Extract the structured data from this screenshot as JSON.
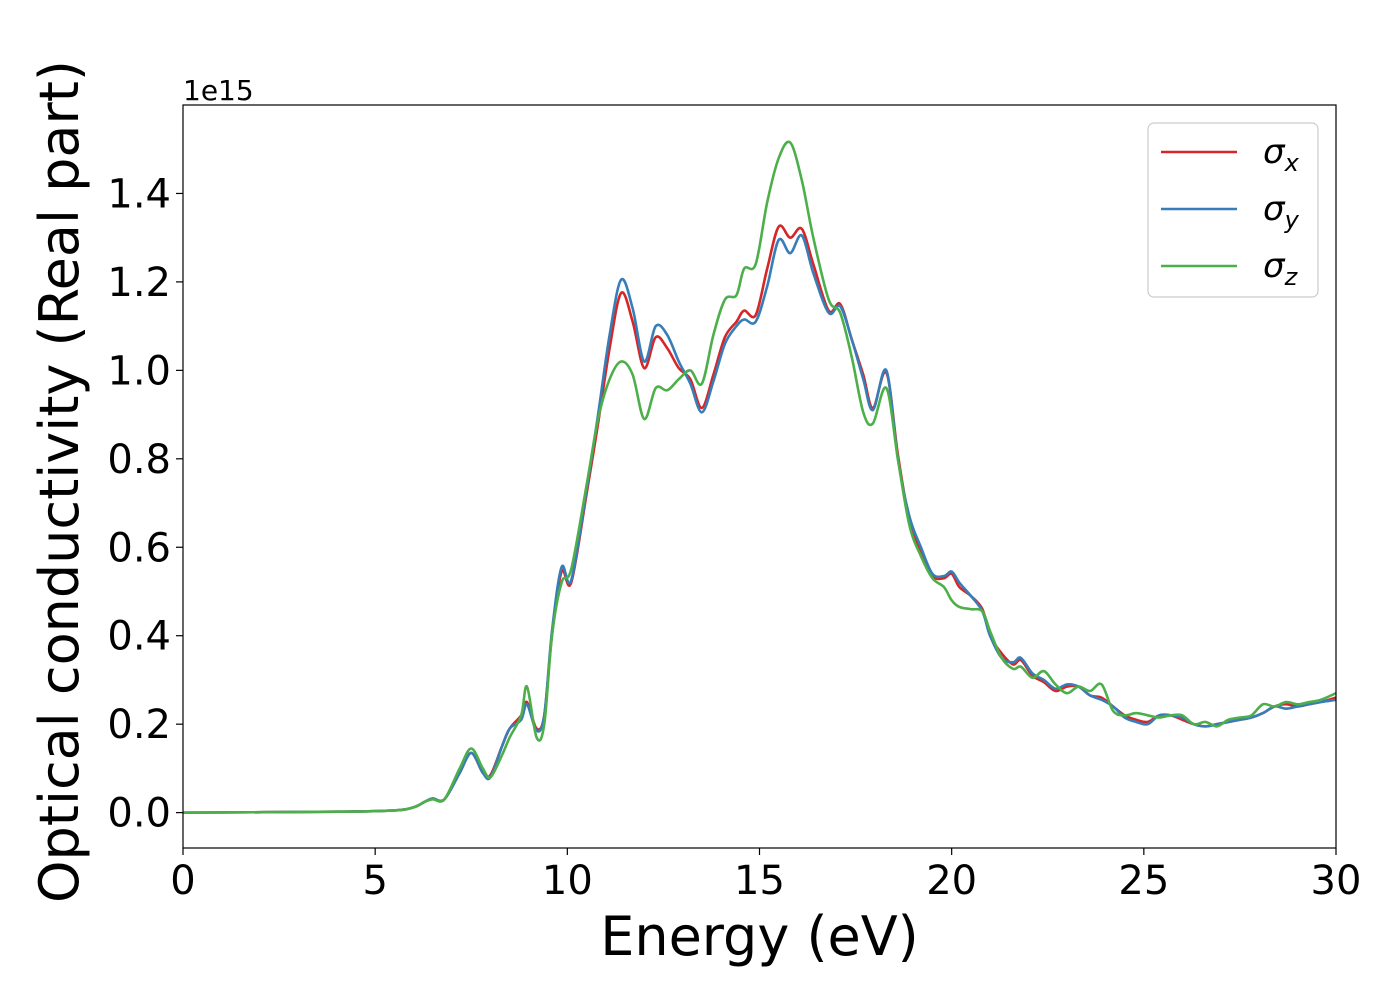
{
  "chart_data": {
    "type": "line",
    "xlabel": "Energy (eV)",
    "ylabel": "Optical conductivity (Real part)",
    "y_offset_label": "1e15",
    "xlim": [
      0,
      30
    ],
    "ylim": [
      -0.08,
      1.6
    ],
    "x_ticks": [
      0,
      5,
      10,
      15,
      20,
      25,
      30
    ],
    "x_tick_labels": [
      "0",
      "5",
      "10",
      "15",
      "20",
      "25",
      "30"
    ],
    "y_ticks": [
      0.0,
      0.2,
      0.4,
      0.6,
      0.8,
      1.0,
      1.2,
      1.4
    ],
    "y_tick_labels": [
      "0.0",
      "0.2",
      "0.4",
      "0.6",
      "0.8",
      "1.0",
      "1.2",
      "1.4"
    ],
    "grid": false,
    "legend_position": "top-right",
    "series": [
      {
        "name": "σ",
        "subscript": "x",
        "color": "#d62728",
        "x": [
          0,
          4,
          5.5,
          6.0,
          6.3,
          6.5,
          6.8,
          7.2,
          7.5,
          7.8,
          8.0,
          8.3,
          8.5,
          8.8,
          8.95,
          9.2,
          9.4,
          9.6,
          9.85,
          10.1,
          10.5,
          10.8,
          11.1,
          11.4,
          11.7,
          12.0,
          12.3,
          12.6,
          12.9,
          13.2,
          13.5,
          13.8,
          14.1,
          14.4,
          14.6,
          14.9,
          15.2,
          15.5,
          15.8,
          16.1,
          16.4,
          16.8,
          17.1,
          17.4,
          17.7,
          17.95,
          18.3,
          18.6,
          18.9,
          19.2,
          19.5,
          19.8,
          20.0,
          20.2,
          20.5,
          20.8,
          21.0,
          21.3,
          21.6,
          21.8,
          22.1,
          22.4,
          22.7,
          23.0,
          23.3,
          23.6,
          23.9,
          24.2,
          24.5,
          24.8,
          25.1,
          25.4,
          25.7,
          26.0,
          26.3,
          26.6,
          26.9,
          27.2,
          27.5,
          27.8,
          28.1,
          28.4,
          28.7,
          29.0,
          29.3,
          29.6,
          30.0
        ],
        "values": [
          0,
          0.002,
          0.005,
          0.012,
          0.025,
          0.032,
          0.03,
          0.09,
          0.135,
          0.09,
          0.085,
          0.15,
          0.19,
          0.22,
          0.25,
          0.19,
          0.22,
          0.4,
          0.545,
          0.52,
          0.72,
          0.88,
          1.05,
          1.175,
          1.11,
          1.005,
          1.075,
          1.05,
          1.005,
          0.98,
          0.915,
          0.99,
          1.075,
          1.11,
          1.135,
          1.125,
          1.23,
          1.325,
          1.3,
          1.32,
          1.24,
          1.135,
          1.15,
          1.07,
          0.99,
          0.915,
          0.995,
          0.81,
          0.66,
          0.59,
          0.535,
          0.53,
          0.54,
          0.51,
          0.49,
          0.46,
          0.4,
          0.36,
          0.335,
          0.345,
          0.31,
          0.295,
          0.275,
          0.285,
          0.285,
          0.265,
          0.26,
          0.24,
          0.22,
          0.21,
          0.205,
          0.22,
          0.22,
          0.21,
          0.2,
          0.195,
          0.2,
          0.205,
          0.21,
          0.215,
          0.225,
          0.24,
          0.245,
          0.24,
          0.245,
          0.25,
          0.26
        ]
      },
      {
        "name": "σ",
        "subscript": "y",
        "color": "#377eb8",
        "x": [
          0,
          4,
          5.5,
          6.0,
          6.3,
          6.5,
          6.8,
          7.2,
          7.5,
          7.8,
          8.0,
          8.3,
          8.5,
          8.8,
          8.95,
          9.2,
          9.4,
          9.6,
          9.85,
          10.1,
          10.5,
          10.8,
          11.1,
          11.4,
          11.7,
          12.0,
          12.3,
          12.6,
          12.9,
          13.2,
          13.5,
          13.8,
          14.1,
          14.4,
          14.6,
          14.9,
          15.2,
          15.5,
          15.8,
          16.1,
          16.4,
          16.8,
          17.1,
          17.4,
          17.7,
          17.95,
          18.3,
          18.6,
          18.9,
          19.2,
          19.5,
          19.8,
          20.0,
          20.2,
          20.5,
          20.8,
          21.0,
          21.3,
          21.6,
          21.8,
          22.1,
          22.4,
          22.7,
          23.0,
          23.3,
          23.6,
          23.9,
          24.2,
          24.5,
          24.8,
          25.1,
          25.4,
          25.7,
          26.0,
          26.3,
          26.6,
          26.9,
          27.2,
          27.5,
          27.8,
          28.1,
          28.4,
          28.7,
          29.0,
          29.3,
          29.6,
          30.0
        ],
        "values": [
          0,
          0.002,
          0.005,
          0.012,
          0.025,
          0.032,
          0.03,
          0.09,
          0.135,
          0.09,
          0.08,
          0.15,
          0.19,
          0.21,
          0.245,
          0.185,
          0.22,
          0.41,
          0.555,
          0.525,
          0.73,
          0.9,
          1.08,
          1.205,
          1.14,
          1.02,
          1.1,
          1.08,
          1.02,
          0.97,
          0.905,
          0.975,
          1.06,
          1.1,
          1.115,
          1.11,
          1.19,
          1.295,
          1.265,
          1.305,
          1.22,
          1.13,
          1.145,
          1.07,
          0.98,
          0.91,
          1.0,
          0.8,
          0.67,
          0.6,
          0.54,
          0.535,
          0.545,
          0.52,
          0.49,
          0.455,
          0.4,
          0.35,
          0.34,
          0.35,
          0.315,
          0.3,
          0.28,
          0.29,
          0.285,
          0.265,
          0.255,
          0.24,
          0.215,
          0.205,
          0.2,
          0.22,
          0.22,
          0.215,
          0.2,
          0.195,
          0.2,
          0.205,
          0.21,
          0.215,
          0.225,
          0.24,
          0.235,
          0.24,
          0.245,
          0.25,
          0.255
        ]
      },
      {
        "name": "σ",
        "subscript": "z",
        "color": "#4daf4a",
        "x": [
          0,
          4,
          5.5,
          6.0,
          6.3,
          6.5,
          6.8,
          7.2,
          7.5,
          7.8,
          8.0,
          8.3,
          8.5,
          8.8,
          8.95,
          9.2,
          9.4,
          9.6,
          9.85,
          10.1,
          10.5,
          10.8,
          11.1,
          11.4,
          11.7,
          12.0,
          12.3,
          12.6,
          12.9,
          13.2,
          13.5,
          13.8,
          14.1,
          14.4,
          14.6,
          14.9,
          15.2,
          15.5,
          15.8,
          16.1,
          16.4,
          16.8,
          17.1,
          17.4,
          17.7,
          17.95,
          18.3,
          18.6,
          18.9,
          19.2,
          19.5,
          19.8,
          20.0,
          20.2,
          20.5,
          20.8,
          21.0,
          21.3,
          21.6,
          21.8,
          22.1,
          22.4,
          22.7,
          23.0,
          23.3,
          23.6,
          23.9,
          24.2,
          24.5,
          24.8,
          25.1,
          25.4,
          25.7,
          26.0,
          26.3,
          26.6,
          26.9,
          27.2,
          27.5,
          27.8,
          28.1,
          28.4,
          28.7,
          29.0,
          29.3,
          29.6,
          30.0
        ],
        "values": [
          0,
          0.002,
          0.005,
          0.012,
          0.025,
          0.03,
          0.03,
          0.1,
          0.145,
          0.1,
          0.08,
          0.13,
          0.17,
          0.22,
          0.285,
          0.17,
          0.2,
          0.4,
          0.52,
          0.55,
          0.74,
          0.89,
          0.98,
          1.02,
          0.99,
          0.89,
          0.96,
          0.955,
          0.98,
          1.0,
          0.97,
          1.08,
          1.16,
          1.17,
          1.23,
          1.24,
          1.38,
          1.48,
          1.515,
          1.43,
          1.3,
          1.16,
          1.13,
          1.03,
          0.905,
          0.88,
          0.96,
          0.8,
          0.65,
          0.58,
          0.53,
          0.51,
          0.48,
          0.465,
          0.46,
          0.455,
          0.41,
          0.35,
          0.325,
          0.33,
          0.305,
          0.32,
          0.29,
          0.27,
          0.285,
          0.275,
          0.29,
          0.23,
          0.22,
          0.225,
          0.22,
          0.215,
          0.22,
          0.22,
          0.2,
          0.205,
          0.195,
          0.21,
          0.215,
          0.22,
          0.245,
          0.24,
          0.25,
          0.245,
          0.25,
          0.255,
          0.27
        ]
      }
    ]
  }
}
